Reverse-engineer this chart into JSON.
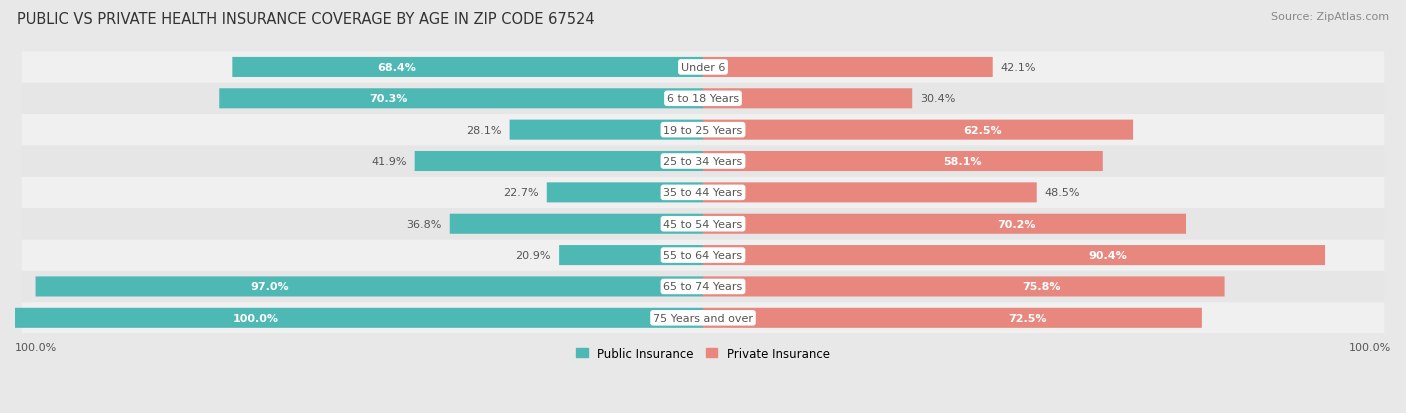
{
  "title": "PUBLIC VS PRIVATE HEALTH INSURANCE COVERAGE BY AGE IN ZIP CODE 67524",
  "source": "Source: ZipAtlas.com",
  "categories": [
    "Under 6",
    "6 to 18 Years",
    "19 to 25 Years",
    "25 to 34 Years",
    "35 to 44 Years",
    "45 to 54 Years",
    "55 to 64 Years",
    "65 to 74 Years",
    "75 Years and over"
  ],
  "public_values": [
    68.4,
    70.3,
    28.1,
    41.9,
    22.7,
    36.8,
    20.9,
    97.0,
    100.0
  ],
  "private_values": [
    42.1,
    30.4,
    62.5,
    58.1,
    48.5,
    70.2,
    90.4,
    75.8,
    72.5
  ],
  "public_color": "#4db8b4",
  "private_color": "#e8877d",
  "row_color_a": "#f0f0f0",
  "row_color_b": "#e6e6e6",
  "label_bg_color": "#ffffff",
  "max_value": 100.0,
  "title_fontsize": 10.5,
  "source_fontsize": 8,
  "label_fontsize": 8,
  "category_fontsize": 8,
  "legend_fontsize": 8.5,
  "axis_label_fontsize": 8
}
